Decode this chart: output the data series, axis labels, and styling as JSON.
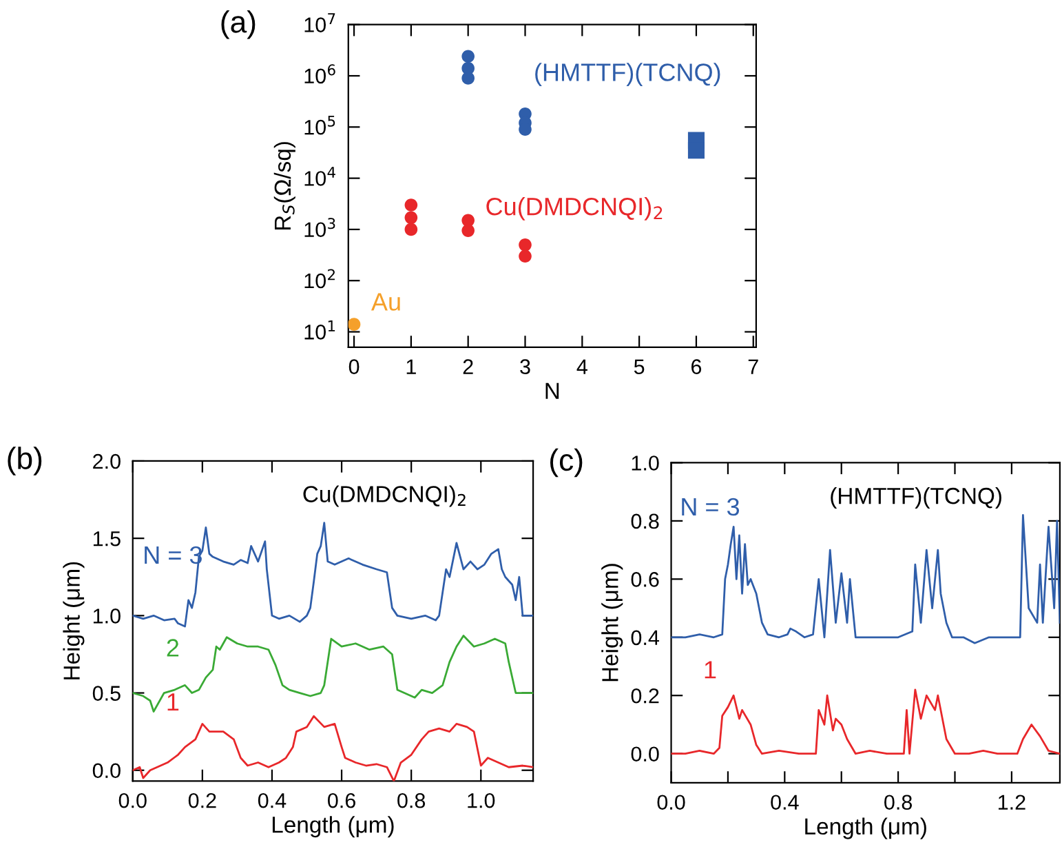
{
  "chart_data": [
    {
      "type": "scatter",
      "xlabel": "N",
      "ylabel": "R$_{S}$(Ω/sq)",
      "annotations": [
        "(a)"
      ],
      "log": "y",
      "xlim": [
        -0.1,
        7.05
      ],
      "xticks": [
        0,
        1,
        2,
        3,
        4,
        5,
        6,
        7
      ],
      "ylim": [
        5,
        10000000
      ],
      "yticks": [
        {
          "value": 10,
          "label": "10$^{1}$"
        },
        {
          "value": 100,
          "label": "10$^{2}$"
        },
        {
          "value": 1000,
          "label": "10$^{3}$"
        },
        {
          "value": 10000,
          "label": "10$^{4}$"
        },
        {
          "value": 100000,
          "label": "10$^{5}$"
        },
        {
          "value": 1000000,
          "label": "10$^{6}$"
        },
        {
          "value": 10000000,
          "label": "10$^{7}$"
        }
      ],
      "grid": false,
      "marker": "circle",
      "series": [
        {
          "name": "Au",
          "color": "#f5a02a",
          "x": [
            0
          ],
          "values": [
            14
          ]
        },
        {
          "name": "Cu(DMDCNQI)$_{2}$",
          "color": "#e8272a",
          "x": [
            1,
            1,
            1,
            2,
            2,
            3,
            3
          ],
          "values": [
            3000,
            1700,
            1000,
            1500,
            950,
            500,
            300
          ]
        },
        {
          "name": "(HMTTF)(TCNQ)",
          "color": "#2f5eaa",
          "x": [
            2,
            2,
            2,
            3,
            3,
            3
          ],
          "values": [
            2400000,
            1400000,
            900000,
            180000,
            120000,
            90000
          ]
        },
        {
          "color": "#2f5eaa",
          "marker": "square",
          "x": [
            6,
            6
          ],
          "values": [
            55000,
            35000
          ]
        }
      ]
    },
    {
      "type": "line",
      "title": "Cu(DMDCNQI)$_{2}$",
      "xlabel": "Length (μm)",
      "ylabel": "Height (μm)",
      "annotations": [
        "(b)"
      ],
      "xlim": [
        0,
        1.15
      ],
      "xticks": [
        {
          "value": 0,
          "label": "0.0"
        },
        0.2,
        0.4,
        0.6,
        0.8,
        {
          "value": 1,
          "label": "1.0"
        }
      ],
      "ylim": [
        -0.07,
        2.0
      ],
      "yticks": [
        {
          "value": 0,
          "label": "0.0"
        },
        0.5,
        {
          "value": 1,
          "label": "1.0"
        },
        1.5,
        {
          "value": 2,
          "label": "2.0"
        }
      ],
      "grid": false,
      "marker": "none",
      "series": [
        {
          "name": "N = 3",
          "color": "#2f5eaa",
          "x": [
            0,
            0.03,
            0.06,
            0.09,
            0.12,
            0.13,
            0.15,
            0.16,
            0.17,
            0.18,
            0.19,
            0.2,
            0.21,
            0.22,
            0.23,
            0.26,
            0.29,
            0.31,
            0.33,
            0.34,
            0.36,
            0.38,
            0.385,
            0.4,
            0.42,
            0.45,
            0.48,
            0.5,
            0.51,
            0.52,
            0.53,
            0.54,
            0.55,
            0.56,
            0.58,
            0.62,
            0.66,
            0.7,
            0.73,
            0.745,
            0.76,
            0.8,
            0.84,
            0.87,
            0.88,
            0.89,
            0.9,
            0.91,
            0.93,
            0.95,
            0.97,
            0.99,
            1.01,
            1.03,
            1.05,
            1.06,
            1.07,
            1.09,
            1.1,
            1.11,
            1.12,
            1.15
          ],
          "values": [
            1.0,
            0.98,
            1.0,
            0.97,
            0.98,
            0.95,
            0.93,
            1.1,
            1.05,
            1.15,
            1.38,
            1.42,
            1.57,
            1.4,
            1.38,
            1.35,
            1.33,
            1.36,
            1.34,
            1.45,
            1.35,
            1.48,
            1.3,
            1.0,
            0.98,
            1.0,
            0.96,
            1.0,
            1.05,
            1.22,
            1.4,
            1.45,
            1.6,
            1.35,
            1.33,
            1.37,
            1.33,
            1.3,
            1.28,
            1.05,
            1.0,
            0.98,
            1.0,
            0.97,
            1.0,
            1.15,
            1.3,
            1.25,
            1.47,
            1.3,
            1.35,
            1.3,
            1.33,
            1.4,
            1.43,
            1.3,
            1.25,
            1.2,
            1.1,
            1.25,
            1.0,
            1.0
          ]
        },
        {
          "name": "2",
          "color": "#3aaa35",
          "x": [
            0,
            0.03,
            0.05,
            0.06,
            0.09,
            0.12,
            0.15,
            0.17,
            0.19,
            0.21,
            0.23,
            0.24,
            0.25,
            0.27,
            0.3,
            0.33,
            0.36,
            0.39,
            0.41,
            0.43,
            0.45,
            0.48,
            0.51,
            0.54,
            0.55,
            0.57,
            0.6,
            0.64,
            0.68,
            0.72,
            0.745,
            0.76,
            0.78,
            0.81,
            0.83,
            0.86,
            0.89,
            0.91,
            0.93,
            0.95,
            0.98,
            1.01,
            1.04,
            1.07,
            1.08,
            1.1,
            1.15
          ],
          "values": [
            0.5,
            0.48,
            0.45,
            0.38,
            0.5,
            0.52,
            0.55,
            0.5,
            0.52,
            0.6,
            0.65,
            0.8,
            0.78,
            0.86,
            0.82,
            0.8,
            0.8,
            0.78,
            0.68,
            0.55,
            0.52,
            0.5,
            0.48,
            0.5,
            0.55,
            0.85,
            0.8,
            0.82,
            0.78,
            0.8,
            0.75,
            0.52,
            0.5,
            0.47,
            0.52,
            0.5,
            0.55,
            0.7,
            0.8,
            0.87,
            0.8,
            0.82,
            0.85,
            0.82,
            0.7,
            0.5,
            0.5
          ]
        },
        {
          "name": "1",
          "color": "#e8272a",
          "x": [
            0,
            0.02,
            0.03,
            0.05,
            0.08,
            0.1,
            0.13,
            0.15,
            0.18,
            0.2,
            0.22,
            0.26,
            0.29,
            0.31,
            0.33,
            0.36,
            0.39,
            0.42,
            0.44,
            0.46,
            0.47,
            0.5,
            0.52,
            0.55,
            0.58,
            0.6,
            0.61,
            0.64,
            0.67,
            0.7,
            0.73,
            0.75,
            0.77,
            0.8,
            0.83,
            0.85,
            0.88,
            0.91,
            0.93,
            0.96,
            0.98,
            1.0,
            1.02,
            1.05,
            1.08,
            1.12,
            1.15
          ],
          "values": [
            0.0,
            0.02,
            -0.05,
            0.0,
            0.03,
            0.05,
            0.1,
            0.15,
            0.2,
            0.3,
            0.25,
            0.25,
            0.2,
            0.08,
            0.03,
            0.05,
            0.02,
            0.05,
            0.08,
            0.15,
            0.25,
            0.28,
            0.35,
            0.28,
            0.3,
            0.15,
            0.08,
            0.05,
            0.03,
            0.04,
            0.02,
            -0.07,
            0.05,
            0.1,
            0.2,
            0.25,
            0.27,
            0.25,
            0.3,
            0.28,
            0.25,
            0.03,
            0.08,
            0.05,
            0.02,
            0.03,
            0.02
          ]
        }
      ]
    },
    {
      "type": "line",
      "title": "(HMTTF)(TCNQ)",
      "xlabel": "Length (μm)",
      "ylabel": "Height (μm)",
      "annotations": [
        "(c)"
      ],
      "xlim": [
        0,
        1.37
      ],
      "xticks": [
        {
          "value": 0,
          "label": "0.0"
        },
        {
          "value": 0.2,
          "label": null
        },
        0.4,
        {
          "value": 0.6,
          "label": null
        },
        0.8,
        {
          "value": 1.0,
          "label": null
        },
        1.2
      ],
      "ylim": [
        -0.1,
        1.0
      ],
      "yticks": [
        {
          "value": 0,
          "label": "0.0"
        },
        0.2,
        0.4,
        0.6,
        0.8,
        {
          "value": 1,
          "label": "1.0"
        }
      ],
      "grid": false,
      "marker": "none",
      "series": [
        {
          "name": "N = 3",
          "color": "#2f5eaa",
          "x": [
            0,
            0.05,
            0.1,
            0.15,
            0.18,
            0.19,
            0.2,
            0.21,
            0.22,
            0.23,
            0.24,
            0.25,
            0.26,
            0.27,
            0.28,
            0.3,
            0.32,
            0.34,
            0.38,
            0.41,
            0.42,
            0.44,
            0.47,
            0.5,
            0.52,
            0.53,
            0.54,
            0.56,
            0.58,
            0.6,
            0.62,
            0.63,
            0.65,
            0.7,
            0.75,
            0.8,
            0.85,
            0.86,
            0.88,
            0.9,
            0.92,
            0.94,
            0.95,
            0.97,
            0.99,
            1.03,
            1.07,
            1.12,
            1.18,
            1.23,
            1.24,
            1.26,
            1.29,
            1.3,
            1.31,
            1.33,
            1.35,
            1.36,
            1.37
          ],
          "values": [
            0.4,
            0.4,
            0.41,
            0.4,
            0.41,
            0.6,
            0.65,
            0.72,
            0.78,
            0.6,
            0.75,
            0.55,
            0.72,
            0.58,
            0.6,
            0.55,
            0.45,
            0.41,
            0.4,
            0.41,
            0.43,
            0.42,
            0.4,
            0.41,
            0.6,
            0.5,
            0.4,
            0.7,
            0.45,
            0.62,
            0.45,
            0.6,
            0.4,
            0.4,
            0.4,
            0.4,
            0.42,
            0.65,
            0.45,
            0.7,
            0.5,
            0.7,
            0.55,
            0.45,
            0.4,
            0.4,
            0.38,
            0.4,
            0.4,
            0.4,
            0.82,
            0.5,
            0.45,
            0.65,
            0.45,
            0.78,
            0.5,
            0.8,
            0.45
          ]
        },
        {
          "name": "1",
          "color": "#e8272a",
          "x": [
            0,
            0.05,
            0.1,
            0.15,
            0.17,
            0.18,
            0.2,
            0.22,
            0.24,
            0.25,
            0.28,
            0.3,
            0.32,
            0.38,
            0.45,
            0.51,
            0.52,
            0.54,
            0.55,
            0.57,
            0.58,
            0.6,
            0.62,
            0.65,
            0.7,
            0.76,
            0.82,
            0.83,
            0.84,
            0.86,
            0.88,
            0.9,
            0.93,
            0.94,
            0.96,
            0.97,
            1.0,
            1.05,
            1.1,
            1.15,
            1.22,
            1.24,
            1.27,
            1.3,
            1.33,
            1.37
          ],
          "values": [
            0.0,
            0.0,
            0.01,
            0.0,
            0.02,
            0.13,
            0.16,
            0.2,
            0.12,
            0.15,
            0.1,
            0.03,
            0.0,
            0.01,
            0.0,
            0.0,
            0.15,
            0.1,
            0.2,
            0.08,
            0.12,
            0.1,
            0.05,
            0.0,
            0.01,
            0.0,
            0.0,
            0.15,
            0.0,
            0.22,
            0.12,
            0.2,
            0.15,
            0.2,
            0.1,
            0.05,
            0.0,
            0.0,
            0.01,
            0.0,
            0.0,
            0.05,
            0.1,
            0.06,
            0.01,
            0.0
          ]
        }
      ]
    }
  ]
}
